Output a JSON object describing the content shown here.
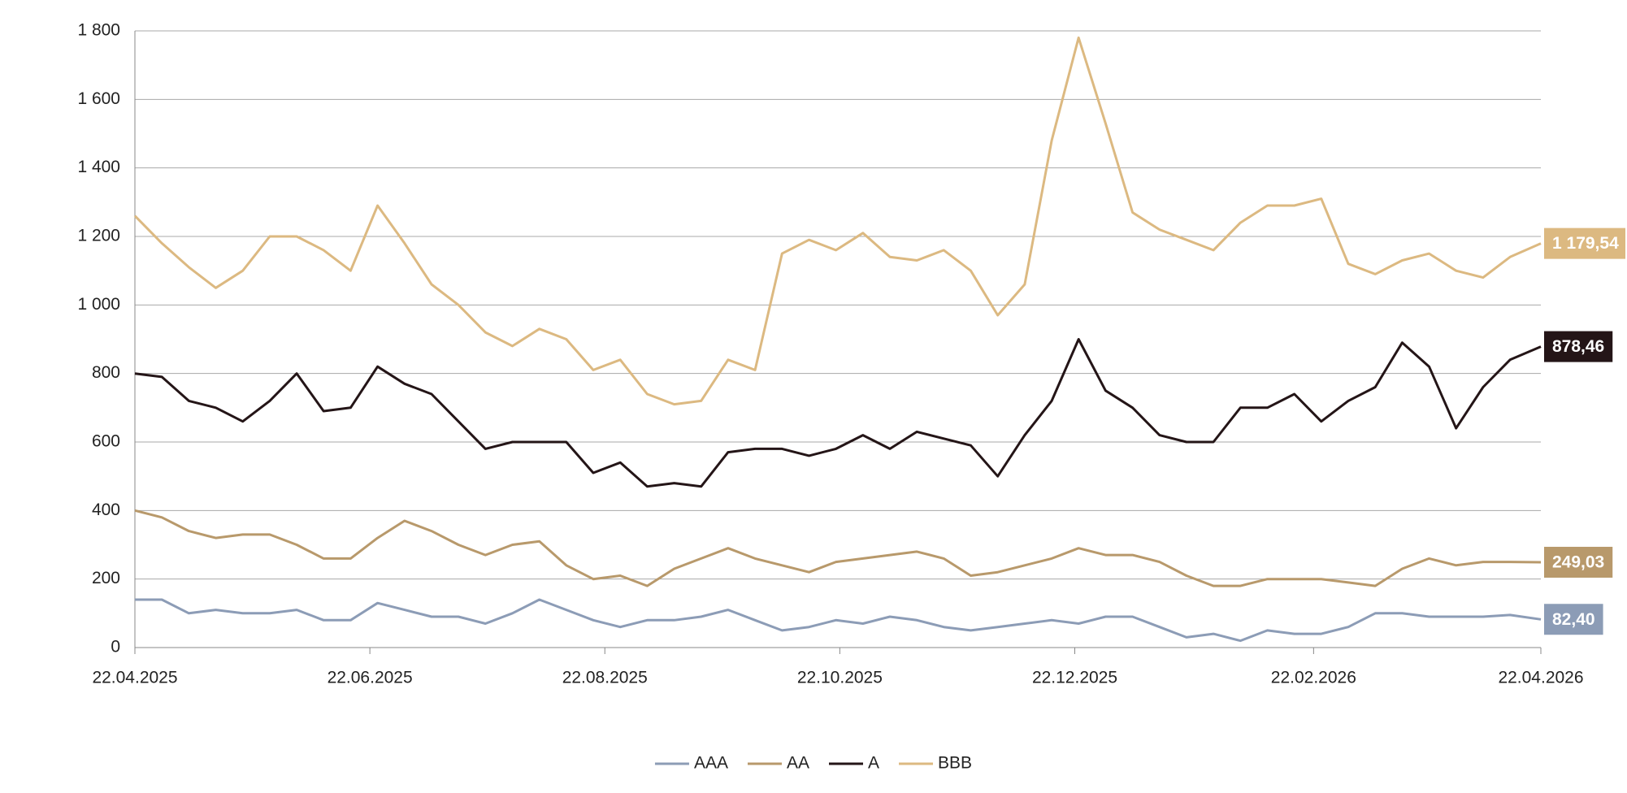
{
  "chart_data": {
    "type": "line",
    "x": [
      "2025-04-22",
      "2025-04-29",
      "2025-05-06",
      "2025-05-13",
      "2025-05-20",
      "2025-05-27",
      "2025-06-03",
      "2025-06-10",
      "2025-06-17",
      "2025-06-24",
      "2025-07-01",
      "2025-07-08",
      "2025-07-15",
      "2025-07-22",
      "2025-07-29",
      "2025-08-05",
      "2025-08-12",
      "2025-08-19",
      "2025-08-26",
      "2025-09-02",
      "2025-09-09",
      "2025-09-16",
      "2025-09-23",
      "2025-09-30",
      "2025-10-07",
      "2025-10-14",
      "2025-10-21",
      "2025-10-28",
      "2025-11-04",
      "2025-11-11",
      "2025-11-18",
      "2025-11-25",
      "2025-12-02",
      "2025-12-09",
      "2025-12-16",
      "2025-12-23",
      "2025-12-30",
      "2026-01-06",
      "2026-01-13",
      "2026-01-20",
      "2026-01-27",
      "2026-02-03",
      "2026-02-10",
      "2026-02-17",
      "2026-02-24",
      "2026-03-03",
      "2026-03-10",
      "2026-03-17",
      "2026-03-24",
      "2026-03-31",
      "2026-04-07",
      "2026-04-14",
      "2026-04-22"
    ],
    "series": [
      {
        "name": "AAA",
        "color": "#8c9cb6",
        "values": [
          140,
          140,
          100,
          110,
          100,
          100,
          110,
          80,
          80,
          130,
          110,
          90,
          90,
          70,
          100,
          140,
          110,
          80,
          60,
          80,
          80,
          90,
          110,
          80,
          50,
          60,
          80,
          70,
          90,
          80,
          60,
          50,
          60,
          70,
          80,
          70,
          90,
          90,
          60,
          30,
          40,
          20,
          50,
          40,
          40,
          60,
          100,
          100,
          90,
          90,
          90,
          95,
          82.4
        ],
        "value_labels": [
          null,
          null,
          null,
          null,
          null,
          null,
          null,
          null,
          null,
          null,
          null,
          null,
          null,
          null,
          null,
          null,
          null,
          null,
          null,
          null,
          null,
          null,
          null,
          null,
          null,
          null,
          null,
          null,
          null,
          null,
          null,
          null,
          null,
          null,
          null,
          null,
          null,
          null,
          null,
          null,
          null,
          null,
          null,
          null,
          null,
          null,
          null,
          null,
          null,
          null,
          null,
          null,
          "82,40"
        ]
      },
      {
        "name": "AA",
        "color": "#b8996b",
        "values": [
          400,
          380,
          340,
          320,
          330,
          330,
          300,
          260,
          260,
          320,
          370,
          340,
          300,
          270,
          300,
          310,
          240,
          200,
          210,
          180,
          230,
          260,
          290,
          260,
          240,
          220,
          250,
          260,
          270,
          280,
          260,
          210,
          220,
          240,
          260,
          290,
          270,
          270,
          250,
          210,
          180,
          180,
          200,
          200,
          200,
          190,
          180,
          230,
          260,
          240,
          250,
          250,
          249.03
        ],
        "value_labels": [
          null,
          null,
          null,
          null,
          null,
          null,
          null,
          null,
          null,
          null,
          null,
          null,
          null,
          null,
          null,
          null,
          null,
          null,
          null,
          null,
          null,
          null,
          null,
          null,
          null,
          null,
          null,
          null,
          null,
          null,
          null,
          null,
          null,
          null,
          null,
          null,
          null,
          null,
          null,
          null,
          null,
          null,
          null,
          null,
          null,
          null,
          null,
          null,
          null,
          null,
          null,
          null,
          "249,03"
        ]
      },
      {
        "name": "A",
        "color": "#241517",
        "values": [
          800,
          790,
          720,
          700,
          660,
          720,
          800,
          690,
          700,
          820,
          770,
          740,
          660,
          580,
          600,
          600,
          600,
          510,
          540,
          470,
          480,
          470,
          570,
          580,
          580,
          560,
          580,
          620,
          580,
          630,
          610,
          590,
          500,
          620,
          720,
          900,
          750,
          700,
          620,
          600,
          600,
          700,
          700,
          740,
          660,
          720,
          760,
          890,
          820,
          640,
          760,
          840,
          878.46
        ],
        "value_labels": [
          null,
          null,
          null,
          null,
          null,
          null,
          null,
          null,
          null,
          null,
          null,
          null,
          null,
          null,
          null,
          null,
          null,
          null,
          null,
          null,
          null,
          null,
          null,
          null,
          null,
          null,
          null,
          null,
          null,
          null,
          null,
          null,
          null,
          null,
          null,
          null,
          null,
          null,
          null,
          null,
          null,
          null,
          null,
          null,
          null,
          null,
          null,
          null,
          null,
          null,
          null,
          null,
          "878,46"
        ]
      },
      {
        "name": "BBB",
        "color": "#dcb981",
        "values": [
          1260,
          1180,
          1110,
          1050,
          1100,
          1200,
          1200,
          1160,
          1100,
          1290,
          1180,
          1060,
          1000,
          920,
          880,
          930,
          900,
          810,
          840,
          740,
          710,
          720,
          840,
          810,
          1150,
          1190,
          1160,
          1210,
          1140,
          1130,
          1160,
          1100,
          970,
          1060,
          1480,
          1780,
          1530,
          1270,
          1220,
          1190,
          1160,
          1240,
          1290,
          1290,
          1310,
          1120,
          1090,
          1130,
          1150,
          1100,
          1080,
          1140,
          1179.54
        ],
        "value_labels": [
          null,
          null,
          null,
          null,
          null,
          null,
          null,
          null,
          null,
          null,
          null,
          null,
          null,
          null,
          null,
          null,
          null,
          null,
          null,
          null,
          null,
          null,
          null,
          null,
          null,
          null,
          null,
          null,
          null,
          null,
          null,
          null,
          null,
          null,
          null,
          null,
          null,
          null,
          null,
          null,
          null,
          null,
          null,
          null,
          null,
          null,
          null,
          null,
          null,
          null,
          null,
          null,
          "1 179,54"
        ]
      }
    ],
    "xlim": [
      "2025-04-22",
      "2026-04-22"
    ],
    "xticks": [
      {
        "value": "2025-04-22",
        "label": "22.04.2025"
      },
      {
        "value": "2025-06-22",
        "label": "22.06.2025"
      },
      {
        "value": "2025-08-22",
        "label": "22.08.2025"
      },
      {
        "value": "2025-10-22",
        "label": "22.10.2025"
      },
      {
        "value": "2025-12-22",
        "label": "22.12.2025"
      },
      {
        "value": "2026-02-22",
        "label": "22.02.2026"
      },
      {
        "value": "2026-04-22",
        "label": "22.04.2026"
      }
    ],
    "ylim": [
      0,
      1800
    ],
    "yticks": [
      0,
      200,
      400,
      600,
      800,
      {
        "value": 1000,
        "label": "1 000"
      },
      {
        "value": 1200,
        "label": "1 200"
      },
      {
        "value": 1400,
        "label": "1 400"
      },
      {
        "value": 1600,
        "label": "1 600"
      },
      {
        "value": 1800,
        "label": "1 800"
      }
    ],
    "grid": true,
    "legend": "bottom"
  }
}
